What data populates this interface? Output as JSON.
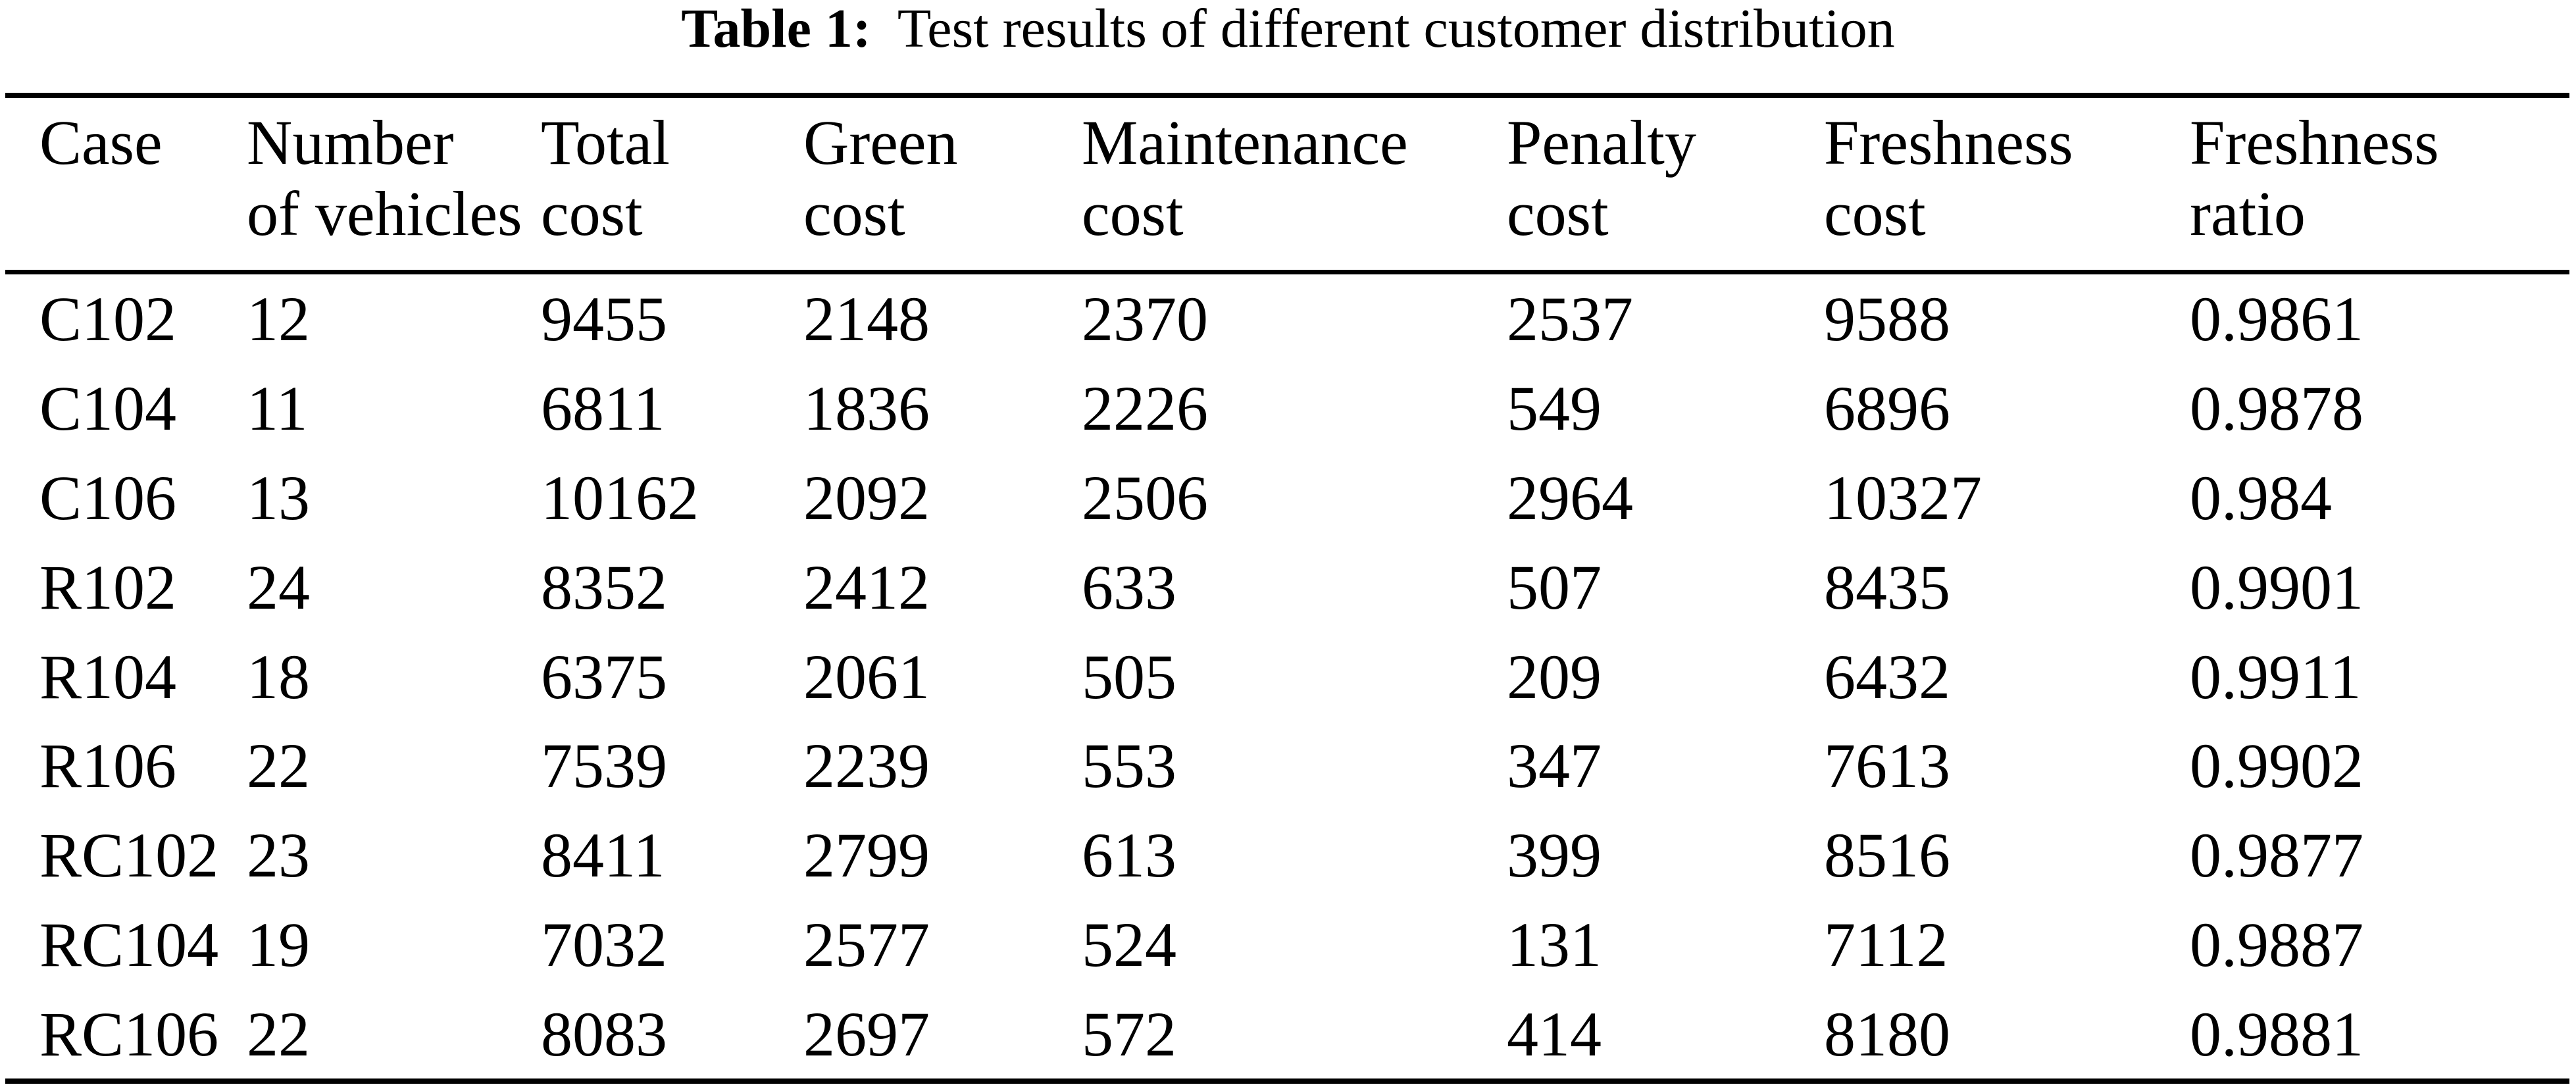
{
  "title": {
    "label": "Table 1:",
    "text": "Test results of different customer distribution"
  },
  "table": {
    "columns": [
      {
        "key": "case",
        "line1": "Case",
        "line2": ""
      },
      {
        "key": "vehicles",
        "line1": "Number",
        "line2": "of vehicles"
      },
      {
        "key": "total-cost",
        "line1": "Total",
        "line2": "cost"
      },
      {
        "key": "green-cost",
        "line1": "Green",
        "line2": "cost"
      },
      {
        "key": "maintenance-cost",
        "line1": "Maintenance",
        "line2": "cost"
      },
      {
        "key": "penalty-cost",
        "line1": "Penalty",
        "line2": "cost"
      },
      {
        "key": "freshness-cost",
        "line1": "Freshness",
        "line2": "cost"
      },
      {
        "key": "freshness-ratio",
        "line1": "Freshness",
        "line2": "ratio"
      }
    ],
    "rows": [
      [
        "C102",
        "12",
        "9455",
        "2148",
        "2370",
        "2537",
        "9588",
        "0.9861"
      ],
      [
        "C104",
        "11",
        "6811",
        "1836",
        "2226",
        "549",
        "6896",
        "0.9878"
      ],
      [
        "C106",
        "13",
        "10162",
        "2092",
        "2506",
        "2964",
        "10327",
        "0.984"
      ],
      [
        "R102",
        "24",
        "8352",
        "2412",
        "633",
        "507",
        "8435",
        "0.9901"
      ],
      [
        "R104",
        "18",
        "6375",
        "2061",
        "505",
        "209",
        "6432",
        "0.9911"
      ],
      [
        "R106",
        "22",
        "7539",
        "2239",
        "553",
        "347",
        "7613",
        "0.9902"
      ],
      [
        "RC102",
        "23",
        "8411",
        "2799",
        "613",
        "399",
        "8516",
        "0.9877"
      ],
      [
        "RC104",
        "19",
        "7032",
        "2577",
        "524",
        "131",
        "7112",
        "0.9887"
      ],
      [
        "RC106",
        "22",
        "8083",
        "2697",
        "572",
        "414",
        "8180",
        "0.9881"
      ]
    ]
  },
  "colors": {
    "background": "#ffffff",
    "text": "#000000",
    "rule": "#000000"
  }
}
